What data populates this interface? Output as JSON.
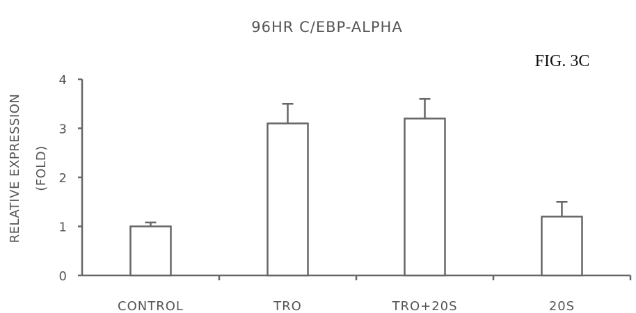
{
  "chart_data": {
    "type": "bar",
    "title": "96HR C/EBP-ALPHA",
    "figure_label": "FIG. 3C",
    "ylabel_line1": "RELATIVE EXPRESSION",
    "ylabel_line2": "(FOLD)",
    "xlabel": "",
    "categories": [
      "CONTROL",
      "TRO",
      "TRO+20S",
      "20S"
    ],
    "values": [
      1.0,
      3.1,
      3.2,
      1.2
    ],
    "errors": [
      0.08,
      0.4,
      0.4,
      0.3
    ],
    "ylim": [
      0,
      4
    ],
    "yticks": [
      "0",
      "1",
      "2",
      "3",
      "4"
    ],
    "grid": false,
    "legend": "none"
  }
}
